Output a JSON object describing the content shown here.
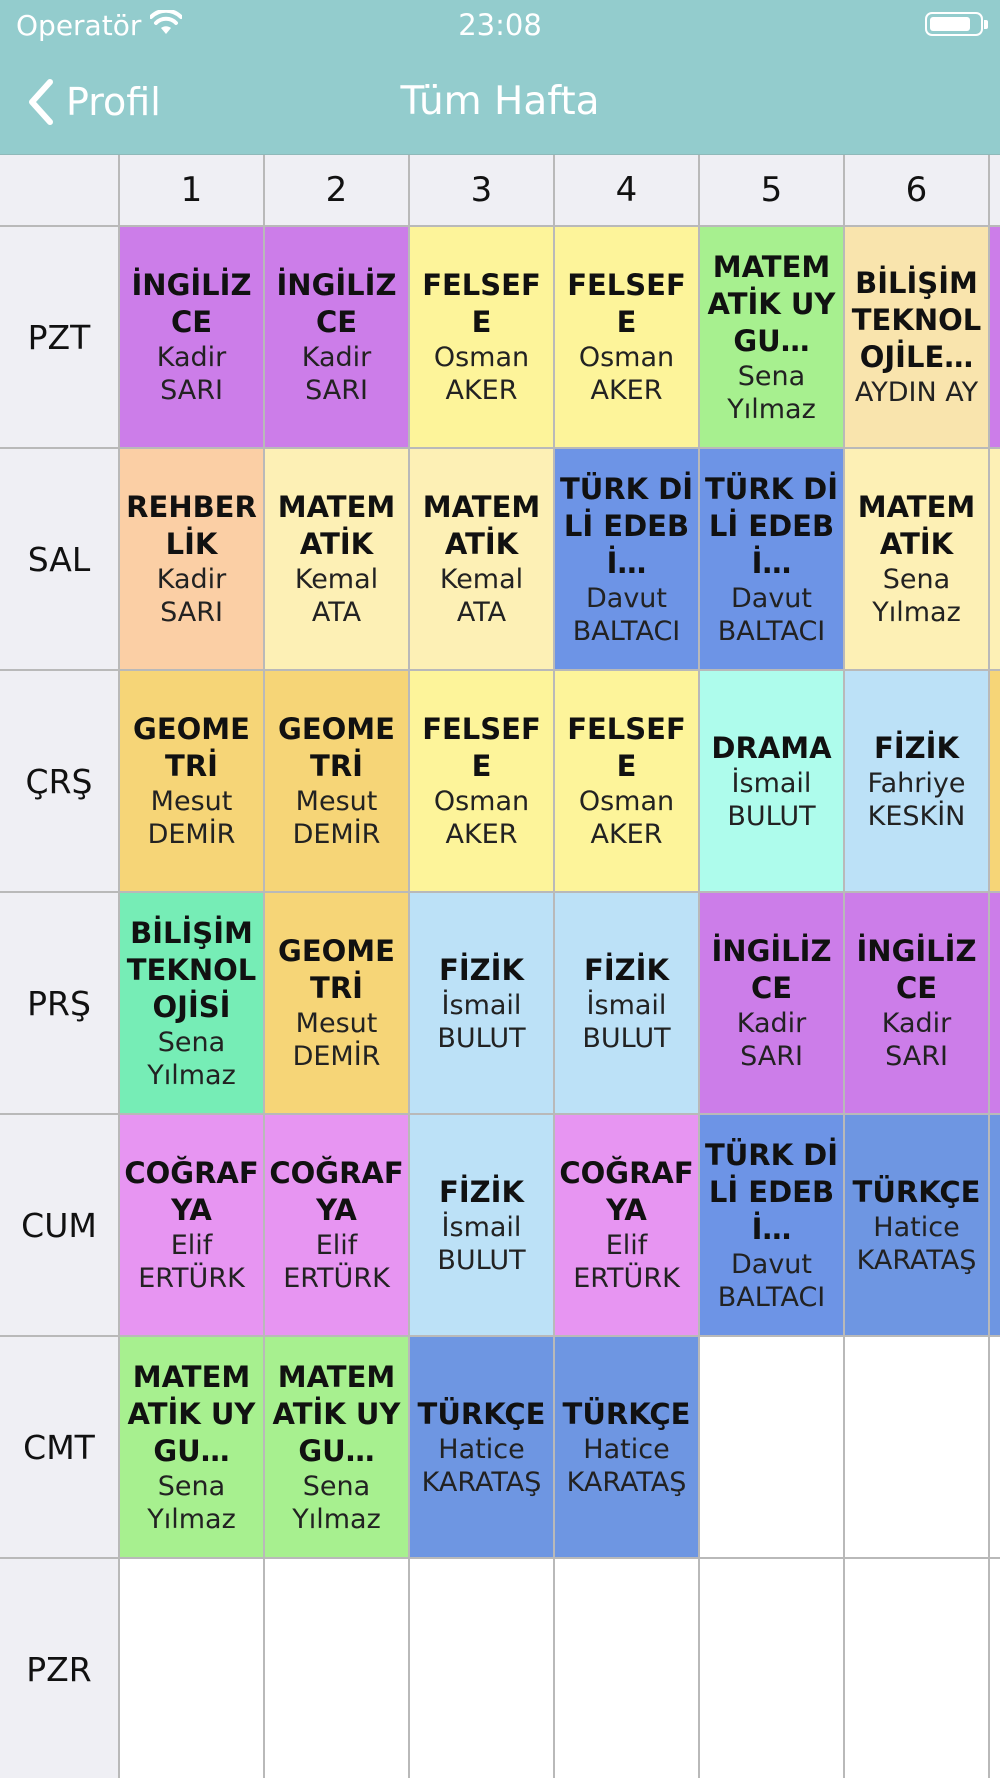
{
  "status_bar": {
    "carrier": "Operatör",
    "time": "23:08"
  },
  "nav": {
    "back_label": "Profil",
    "title": "Tüm Hafta"
  },
  "periods": [
    "1",
    "2",
    "3",
    "4",
    "5",
    "6"
  ],
  "days": [
    "PZT",
    "SAL",
    "ÇRŞ",
    "PRŞ",
    "CUM",
    "CMT",
    "PZR"
  ],
  "colors": {
    "english": "#cc7de9",
    "philosophy": "#fdf49a",
    "math_app": "#a7f08f",
    "it_tech": "#f9e4ad",
    "guidance": "#fbcfa5",
    "math": "#fdf0b5",
    "turkish_lit": "#6d94e6",
    "geometry": "#f6d577",
    "drama": "#aefcec",
    "physics": "#bce1f7",
    "it": "#76edb6",
    "geography": "#e795f2",
    "turkish": "#6e96e2"
  },
  "rows": [
    {
      "day": "PZT",
      "cells": [
        {
          "subject": "İNGİLİZCE",
          "teacher": "Kadir SARI",
          "color": "#cc7de9"
        },
        {
          "subject": "İNGİLİZCE",
          "teacher": "Kadir SARI",
          "color": "#cc7de9"
        },
        {
          "subject": "FELSEFE",
          "teacher": "Osman AKER",
          "color": "#fdf49a"
        },
        {
          "subject": "FELSEFE",
          "teacher": "Osman AKER",
          "color": "#fdf49a"
        },
        {
          "subject": "MATEMATİK UYGU…",
          "teacher": "Sena Yılmaz",
          "color": "#a7f08f"
        },
        {
          "subject": "BİLİŞİM TEKNOLOJİLE…",
          "teacher": "AYDIN AY",
          "color": "#f9e4ad"
        }
      ]
    },
    {
      "day": "SAL",
      "cells": [
        {
          "subject": "REHBERLİK",
          "teacher": "Kadir SARI",
          "color": "#fbcfa5"
        },
        {
          "subject": "MATEMATİK",
          "teacher": "Kemal ATA",
          "color": "#fdf0b5"
        },
        {
          "subject": "MATEMATİK",
          "teacher": "Kemal ATA",
          "color": "#fdf0b5"
        },
        {
          "subject": "TÜRK DİLİ EDEBİ…",
          "teacher": "Davut BALTACI",
          "color": "#6d94e6"
        },
        {
          "subject": "TÜRK DİLİ EDEBİ…",
          "teacher": "Davut BALTACI",
          "color": "#6d94e6"
        },
        {
          "subject": "MATEMATİK",
          "teacher": "Sena Yılmaz",
          "color": "#fdf0b5"
        }
      ]
    },
    {
      "day": "ÇRŞ",
      "cells": [
        {
          "subject": "GEOMETRİ",
          "teacher": "Mesut DEMİR",
          "color": "#f6d577"
        },
        {
          "subject": "GEOMETRİ",
          "teacher": "Mesut DEMİR",
          "color": "#f6d577"
        },
        {
          "subject": "FELSEFE",
          "teacher": "Osman AKER",
          "color": "#fdf49a"
        },
        {
          "subject": "FELSEFE",
          "teacher": "Osman AKER",
          "color": "#fdf49a"
        },
        {
          "subject": "DRAMA",
          "teacher": "İsmail BULUT",
          "color": "#aefcec"
        },
        {
          "subject": "FİZİK",
          "teacher": "Fahriye KESKİN",
          "color": "#bce1f7"
        }
      ]
    },
    {
      "day": "PRŞ",
      "cells": [
        {
          "subject": "BİLİŞİM TEKNOLOJİSİ",
          "teacher": "Sena Yılmaz",
          "color": "#76edb6"
        },
        {
          "subject": "GEOMETRİ",
          "teacher": "Mesut DEMİR",
          "color": "#f6d577"
        },
        {
          "subject": "FİZİK",
          "teacher": "İsmail BULUT",
          "color": "#bce1f7"
        },
        {
          "subject": "FİZİK",
          "teacher": "İsmail BULUT",
          "color": "#bce1f7"
        },
        {
          "subject": "İNGİLİZCE",
          "teacher": "Kadir SARI",
          "color": "#cc7de9"
        },
        {
          "subject": "İNGİLİZCE",
          "teacher": "Kadir SARI",
          "color": "#cc7de9"
        }
      ]
    },
    {
      "day": "CUM",
      "cells": [
        {
          "subject": "COĞRAFYA",
          "teacher": "Elif ERTÜRK",
          "color": "#e795f2"
        },
        {
          "subject": "COĞRAFYA",
          "teacher": "Elif ERTÜRK",
          "color": "#e795f2"
        },
        {
          "subject": "FİZİK",
          "teacher": "İsmail BULUT",
          "color": "#bce1f7"
        },
        {
          "subject": "COĞRAFYA",
          "teacher": "Elif ERTÜRK",
          "color": "#e795f2"
        },
        {
          "subject": "TÜRK DİLİ EDEBİ…",
          "teacher": "Davut BALTACI",
          "color": "#6d94e6"
        },
        {
          "subject": "TÜRKÇE",
          "teacher": "Hatice KARATAŞ",
          "color": "#6e96e2"
        }
      ]
    },
    {
      "day": "CMT",
      "cells": [
        {
          "subject": "MATEMATİK UYGU…",
          "teacher": "Sena Yılmaz",
          "color": "#a7f08f"
        },
        {
          "subject": "MATEMATİK UYGU…",
          "teacher": "Sena Yılmaz",
          "color": "#a7f08f"
        },
        {
          "subject": "TÜRKÇE",
          "teacher": "Hatice KARATAŞ",
          "color": "#6e96e2"
        },
        {
          "subject": "TÜRKÇE",
          "teacher": "Hatice KARATAŞ",
          "color": "#6e96e2"
        },
        null,
        null
      ]
    },
    {
      "day": "PZR",
      "cells": [
        null,
        null,
        null,
        null,
        null,
        null
      ]
    }
  ],
  "peek_colors": [
    "#cc7de9",
    "#fdf0b5",
    "#f6d577",
    "#cc7de9",
    "#6e96e2",
    "#ffffff",
    "#ffffff"
  ]
}
